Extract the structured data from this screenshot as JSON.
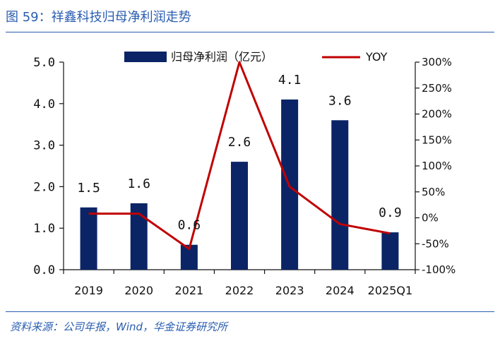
{
  "figure": {
    "title": "图 59：祥鑫科技归母净利润走势",
    "source": "资料来源：公司年报，Wind，华金证券研究所"
  },
  "chart_data": {
    "type": "bar",
    "categories": [
      "2019",
      "2020",
      "2021",
      "2022",
      "2023",
      "2024",
      "2025Q1"
    ],
    "series": [
      {
        "name": "归母净利润（亿元）",
        "type": "bar",
        "axis": "left",
        "color": "#0b2466",
        "values": [
          1.5,
          1.6,
          0.6,
          2.6,
          4.1,
          3.6,
          0.9
        ],
        "labels": [
          "1.5",
          "1.6",
          "0.6",
          "2.6",
          "4.1",
          "3.6",
          "0.9"
        ]
      },
      {
        "name": "YOY",
        "type": "line",
        "axis": "right",
        "color": "#c00000",
        "values": [
          8,
          8,
          -60,
          300,
          60,
          -12,
          -30
        ]
      }
    ],
    "y_left": {
      "min": 0,
      "max": 5,
      "ticks": [
        "0.0",
        "1.0",
        "2.0",
        "3.0",
        "4.0",
        "5.0"
      ]
    },
    "y_right": {
      "min": -100,
      "max": 300,
      "ticks": [
        "-100%",
        "-50%",
        "0%",
        "50%",
        "100%",
        "150%",
        "200%",
        "250%",
        "300%"
      ]
    },
    "legend": "top-center"
  }
}
